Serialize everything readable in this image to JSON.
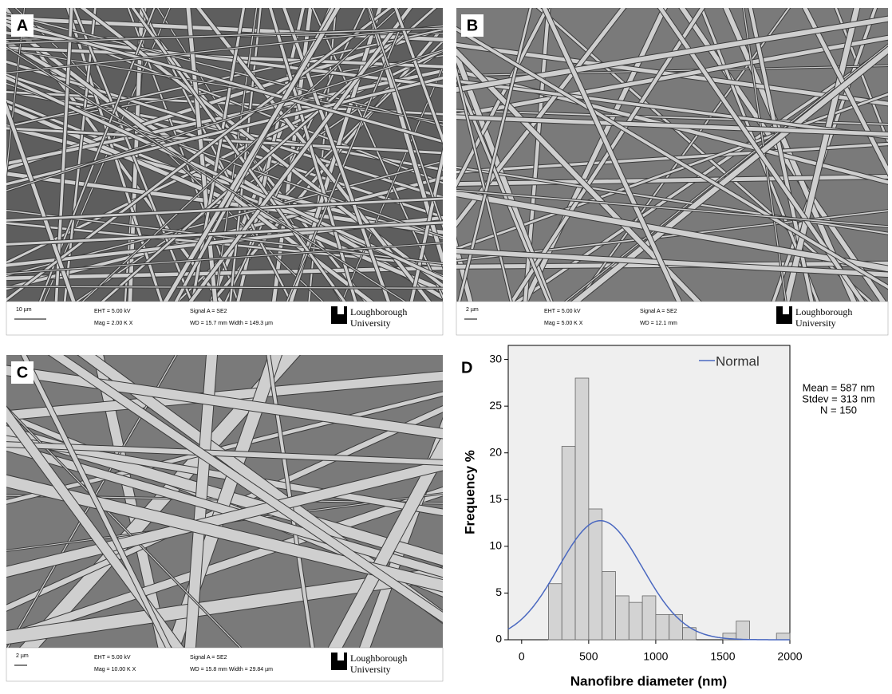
{
  "panels": [
    {
      "label": "A",
      "scale_bar": "10 µm",
      "eht": "EHT = 5.00 kV",
      "mag": "Mag = 2.00 K X",
      "signal": "Signal A = SE2",
      "wd": "WD = 15.7 mm  Width = 149.3 µm",
      "logo": [
        "Loughborough",
        "University"
      ]
    },
    {
      "label": "B",
      "scale_bar": "2 µm",
      "eht": "EHT = 5.00 kV",
      "mag": "Mag = 5.00 K X",
      "signal": "Signal A = SE2",
      "wd": "WD = 12.1 mm",
      "logo": [
        "Loughborough",
        "University"
      ]
    },
    {
      "label": "C",
      "scale_bar": "2 µm",
      "eht": "EHT = 5.00 kV",
      "mag": "Mag = 10.00 K X",
      "signal": "Signal A = SE2",
      "wd": "WD = 15.8 mm  Width = 29.84 µm",
      "logo": [
        "Loughborough",
        "University"
      ]
    }
  ],
  "chart_data": {
    "type": "histogram",
    "label": "D",
    "x_label": "Nanofibre diameter (nm)",
    "y_label": "Frequency %",
    "bins": [
      200,
      300,
      400,
      500,
      600,
      700,
      800,
      900,
      1000,
      1100,
      1200,
      1300,
      1400,
      1500,
      1600,
      1700,
      1800,
      1900,
      2000
    ],
    "values": [
      6.0,
      20.7,
      28.0,
      14.0,
      7.3,
      4.7,
      4.0,
      4.7,
      2.7,
      2.7,
      1.3,
      0,
      0,
      0.7,
      2.0,
      0,
      0,
      0.7
    ],
    "color": "#d3d3d3",
    "xlim": [
      -100,
      2000
    ],
    "ylim": [
      0,
      31.5
    ],
    "xticks": [
      0,
      500,
      1000,
      1500,
      2000
    ],
    "yticks": [
      0,
      5,
      10,
      15,
      20,
      25,
      30
    ],
    "curve": {
      "name": "Normal",
      "color": "#4a68c0",
      "mean": 587,
      "stdev": 313
    },
    "stats": [
      "Mean = 587 nm",
      "Stdev = 313 nm",
      "N = 150"
    ]
  }
}
